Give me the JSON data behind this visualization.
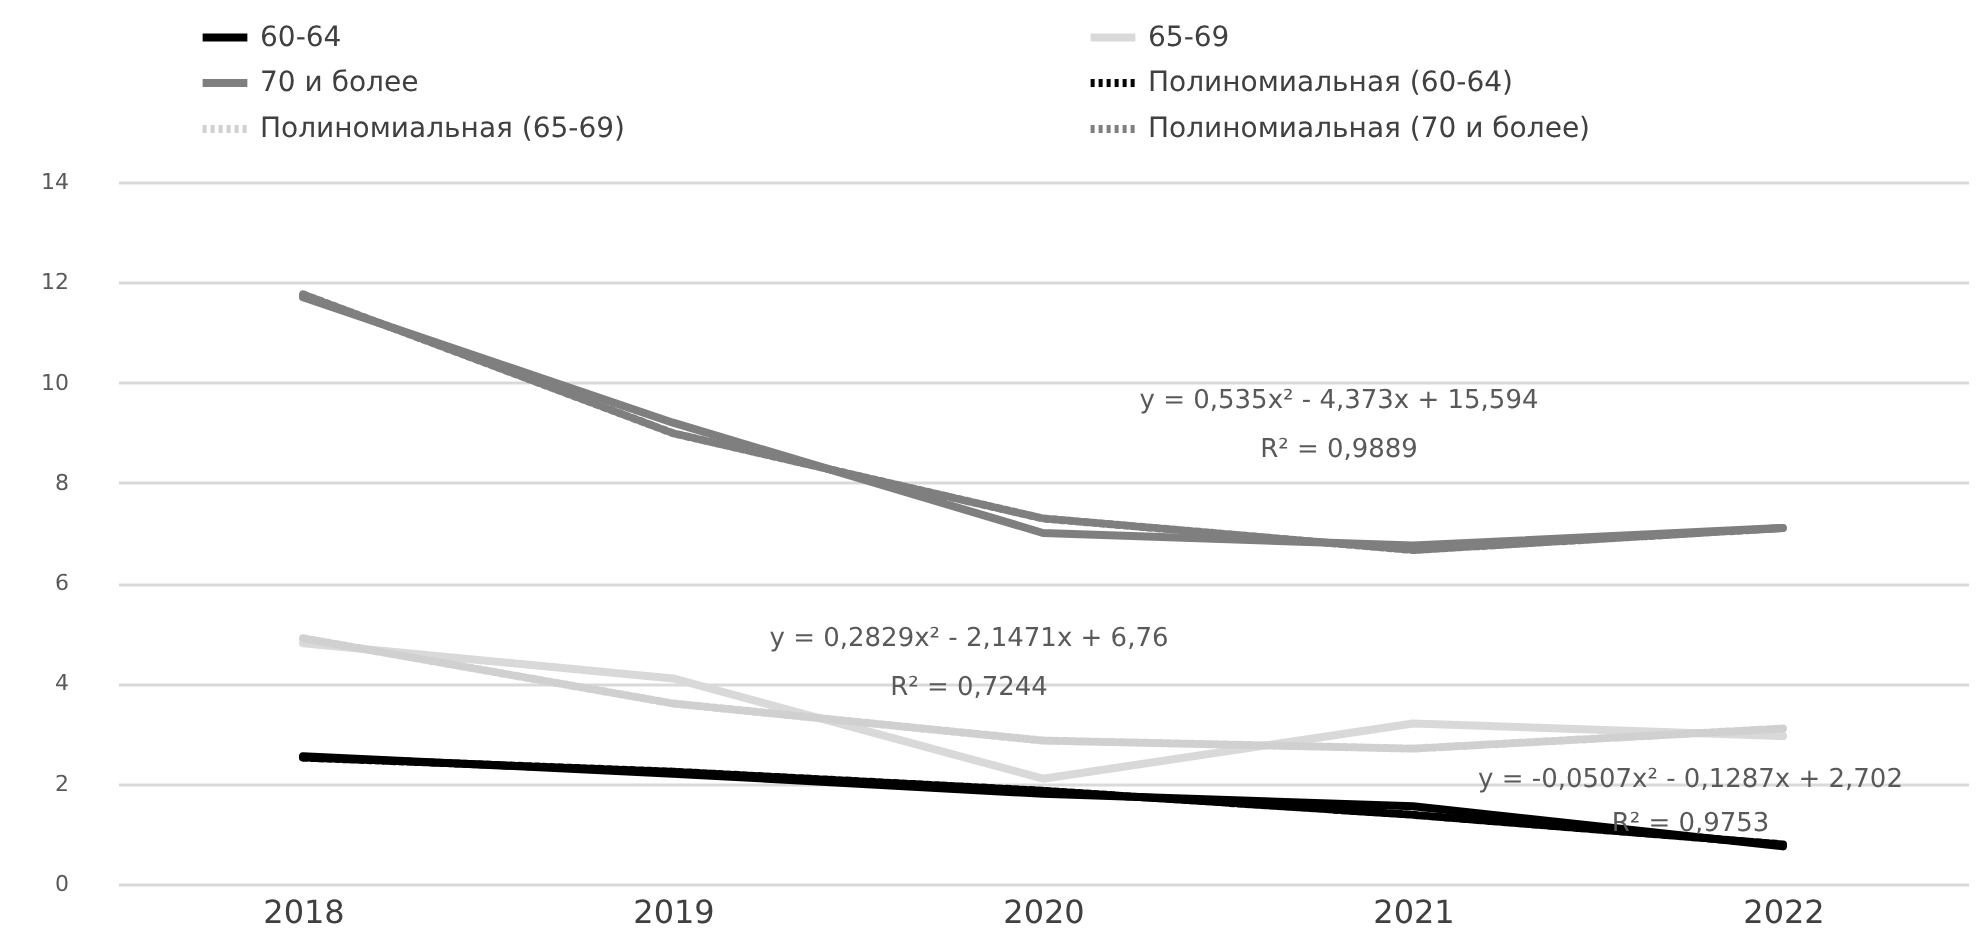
{
  "chart_data": {
    "type": "line",
    "categories": [
      "2018",
      "2019",
      "2020",
      "2021",
      "2022"
    ],
    "series": [
      {
        "name": "60-64",
        "color": "#000000",
        "values": [
          2.55,
          2.2,
          1.8,
          1.55,
          0.75
        ]
      },
      {
        "name": "65-69",
        "color": "#d9d9d9",
        "values": [
          4.8,
          4.1,
          2.1,
          3.2,
          2.95
        ]
      },
      {
        "name": "70 и более",
        "color": "#7f7f7f",
        "values": [
          11.7,
          9.2,
          7.0,
          6.75,
          7.1
        ]
      },
      {
        "name": "Полиномиальная (60-64)",
        "color": "#000000",
        "type": "line",
        "line_style": "dotted",
        "values": [
          2.52,
          2.24,
          1.86,
          1.38,
          0.79
        ]
      },
      {
        "name": "Полиномиальная (65-69)",
        "color": "#d0d0d0",
        "type": "line",
        "line_style": "dotted",
        "values": [
          4.9,
          3.6,
          2.86,
          2.7,
          3.1
        ]
      },
      {
        "name": "Полиномиальная (70 и более)",
        "color": "#7f7f7f",
        "type": "line",
        "line_style": "dotted",
        "values": [
          11.76,
          8.99,
          7.29,
          6.66,
          7.1
        ]
      }
    ],
    "ylim": [
      0,
      14
    ],
    "yticks": [
      0,
      2,
      4,
      6,
      8,
      10,
      12,
      14
    ],
    "grid": "y",
    "legend": "top",
    "line_style": "solid",
    "marker": "none",
    "annotations": [
      "y = 0,535x² - 4,373x + 15,594",
      "R² = 0,9889",
      "y = 0,2829x² - 2,1471x + 6,76",
      "R² = 0,7244",
      "y = -0,0507x² - 0,1287x + 2,702",
      "R² = 0,9753"
    ]
  }
}
